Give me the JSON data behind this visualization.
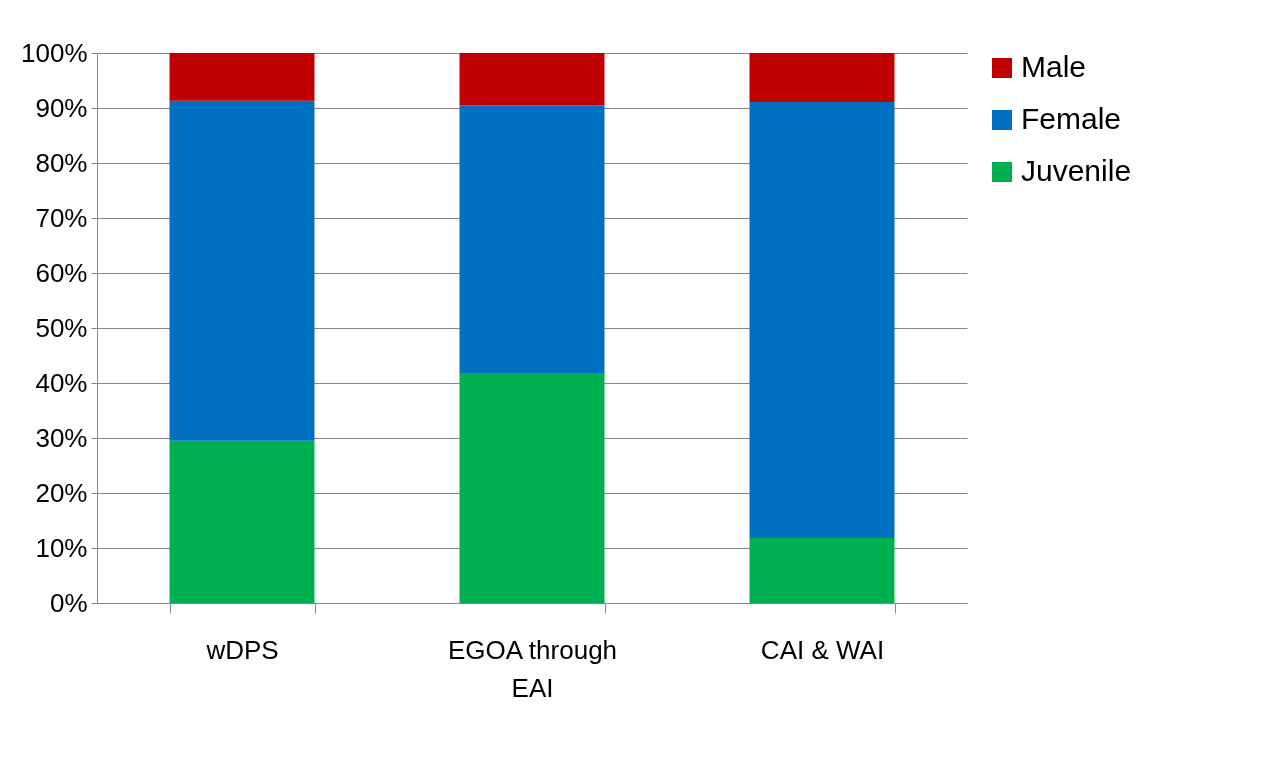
{
  "chart_data": {
    "type": "bar",
    "stacked": true,
    "categories": [
      "wDPS",
      "EGOA through EAI",
      "CAI & WAI"
    ],
    "series": [
      {
        "name": "Juvenile",
        "color": "#00b050",
        "values": [
          29.5,
          41.8,
          11.8
        ]
      },
      {
        "name": "Female",
        "color": "#0070c0",
        "values": [
          61.8,
          48.7,
          79.3
        ]
      },
      {
        "name": "Male",
        "color": "#c00000",
        "values": [
          8.7,
          9.5,
          8.9
        ]
      }
    ],
    "ylim": [
      0,
      100
    ],
    "yticks": [
      {
        "value": 0,
        "label": "0%"
      },
      {
        "value": 10,
        "label": "10%"
      },
      {
        "value": 20,
        "label": "20%"
      },
      {
        "value": 30,
        "label": "30%"
      },
      {
        "value": 40,
        "label": "40%"
      },
      {
        "value": 50,
        "label": "50%"
      },
      {
        "value": 60,
        "label": "60%"
      },
      {
        "value": 70,
        "label": "70%"
      },
      {
        "value": 80,
        "label": "80%"
      },
      {
        "value": 90,
        "label": "90%"
      },
      {
        "value": 100,
        "label": "100%"
      }
    ],
    "grid": "y",
    "legend": "right"
  }
}
